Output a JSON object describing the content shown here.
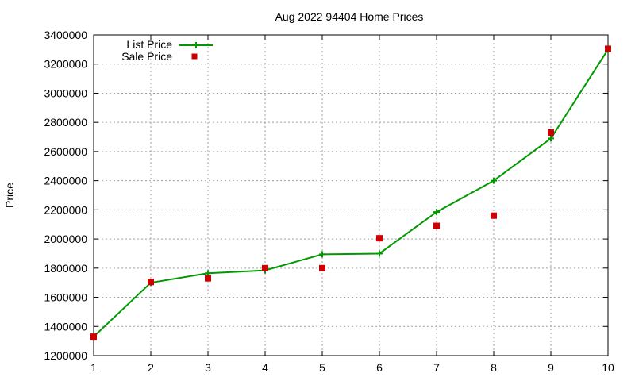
{
  "chart_data": {
    "type": "line",
    "title": "Aug 2022 94404 Home Prices",
    "xlabel": "",
    "ylabel": "Price",
    "x": [
      1,
      2,
      3,
      4,
      5,
      6,
      7,
      8,
      9,
      10
    ],
    "xlim": [
      1,
      10
    ],
    "ylim": [
      1200000,
      3400000
    ],
    "xticks": [
      "1",
      "2",
      "3",
      "4",
      "5",
      "6",
      "7",
      "8",
      "9",
      "10"
    ],
    "yticks": [
      "1200000",
      "1400000",
      "1600000",
      "1800000",
      "2000000",
      "2200000",
      "2400000",
      "2600000",
      "2800000",
      "3000000",
      "3200000",
      "3400000"
    ],
    "grid": true,
    "legend_position": "top-left",
    "series": [
      {
        "name": "List Price",
        "style": "line+cross",
        "color": "#009900",
        "values": [
          1330000,
          1700000,
          1765000,
          1785000,
          1895000,
          1900000,
          2185000,
          2400000,
          2690000,
          3300000
        ]
      },
      {
        "name": "Sale Price",
        "style": "square",
        "color": "#cc0000",
        "values": [
          1330000,
          1705000,
          1730000,
          1800000,
          1800000,
          2005000,
          2090000,
          2160000,
          2730000,
          3305000
        ]
      }
    ]
  }
}
